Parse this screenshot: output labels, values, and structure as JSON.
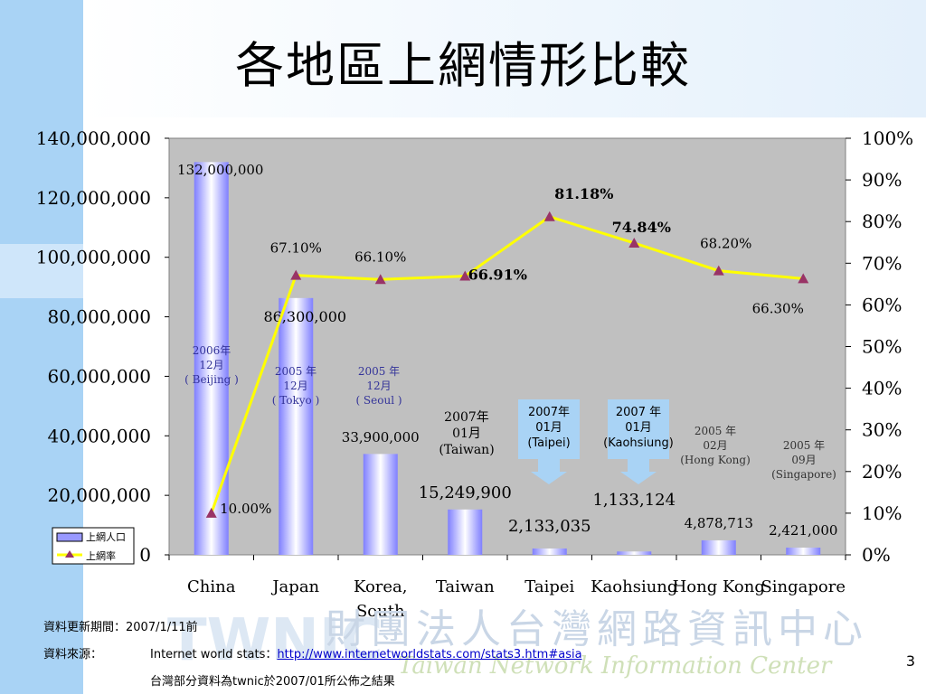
{
  "slide": {
    "title": "各地區上網情形比較",
    "page_number": "3",
    "watermark_cn": "財團法人台灣網路資訊中心",
    "watermark_en": "Taiwan Network Information Center",
    "watermark_logo": "TWNIC"
  },
  "notes": {
    "update_label": "資料更新期間：",
    "update_value": "2007/1/11前",
    "source_label": "資料來源：",
    "source_prefix": "Internet world stats：",
    "source_link": "http://www.internetworldstats.com/stats3.htm#asia",
    "taiwan_note": "台灣部分資料為twnic於2007/01所公佈之結果"
  },
  "colors": {
    "plot_bg": "#c0c0c0",
    "bar_fill": "#9999ff",
    "line": "#ffff00",
    "marker": "#993366"
  },
  "chart_data": {
    "type": "bar",
    "categories": [
      "China",
      "Japan",
      "Korea, South",
      "Taiwan",
      "Taipei",
      "Kaohsiung",
      "Hong Kong",
      "Singapore"
    ],
    "series": [
      {
        "name": "上網人口",
        "type": "bar",
        "axis": "left",
        "values": [
          132000000,
          86300000,
          33900000,
          15249900,
          2133035,
          1133124,
          4878713,
          2421000
        ],
        "labels": [
          "132,000,000",
          "86,300,000",
          "33,900,000",
          "15,249,900",
          "2,133,035",
          "1,133,124",
          "4,878,713",
          "2,421,000"
        ]
      },
      {
        "name": "上網率",
        "type": "line",
        "axis": "right",
        "values": [
          10.0,
          67.1,
          66.1,
          66.91,
          81.18,
          74.84,
          68.2,
          66.3
        ],
        "labels": [
          "10.00%",
          "67.10%",
          "66.10%",
          "66.91%",
          "81.18%",
          "74.84%",
          "68.20%",
          "66.30%"
        ]
      }
    ],
    "y_left": {
      "min": 0,
      "max": 140000000,
      "ticks": [
        "0",
        "20,000,000",
        "40,000,000",
        "60,000,000",
        "80,000,000",
        "100,000,000",
        "120,000,000",
        "140,000,000"
      ]
    },
    "y_right": {
      "min": 0,
      "max": 100,
      "ticks": [
        "0%",
        "10%",
        "20%",
        "30%",
        "40%",
        "50%",
        "60%",
        "70%",
        "80%",
        "90%",
        "100%"
      ]
    },
    "date_annotations": [
      [
        "2006年",
        "12月",
        "( Beijing )"
      ],
      [
        "2005 年",
        "12月",
        "( Tokyo )"
      ],
      [
        "2005 年",
        "12月",
        "( Seoul )"
      ],
      [
        "2007年",
        "01月",
        "(Taiwan)"
      ],
      [
        "2007年",
        "01月",
        "(Taipei)"
      ],
      [
        "2007 年",
        "01月",
        "(Kaohsiung)"
      ],
      [
        "2005 年",
        "02月",
        "(Hong Kong)"
      ],
      [
        "2005 年",
        "09月",
        "(Singapore)"
      ]
    ],
    "legend": {
      "position": "bottom-left",
      "entries": [
        "上網人口",
        "上網率"
      ]
    },
    "grid": false
  }
}
